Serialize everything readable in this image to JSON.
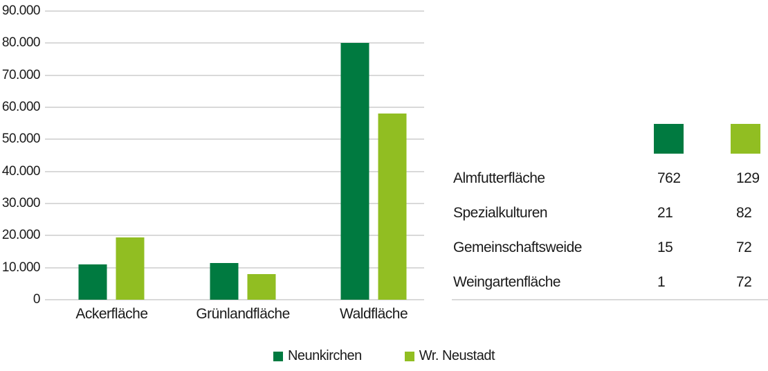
{
  "chart_data": {
    "type": "bar",
    "title": "",
    "categories": [
      "Ackerfläche",
      "Grünlandfläche",
      "Waldfläche"
    ],
    "series": [
      {
        "name": "Neunkirchen",
        "color": "#007A40",
        "values": [
          11000,
          11500,
          80000
        ]
      },
      {
        "name": "Wr. Neustadt",
        "color": "#91BE22",
        "values": [
          19500,
          8000,
          58000
        ]
      }
    ],
    "ylim": [
      0,
      90000
    ],
    "ytick_step": 10000,
    "ytick_labels": [
      "0",
      "10.000",
      "20.000",
      "30.000",
      "40.000",
      "50.000",
      "60.000",
      "70.000",
      "80.000",
      "90.000"
    ],
    "grid": "horizontal-gridlines-on",
    "legend_position": "bottom"
  },
  "legend": {
    "items": [
      {
        "label": "Neunkirchen",
        "color": "#007A40"
      },
      {
        "label": "Wr. Neustadt",
        "color": "#91BE22"
      }
    ]
  },
  "side_table": {
    "header_swatches": [
      {
        "icon": "neunkirchen-color-swatch",
        "color": "#007A40"
      },
      {
        "icon": "wr-neustadt-color-swatch",
        "color": "#91BE22"
      }
    ],
    "rows": [
      {
        "label": "Almfutterfläche",
        "values": [
          "762",
          "129"
        ]
      },
      {
        "label": "Spezialkulturen",
        "values": [
          "21",
          "82"
        ]
      },
      {
        "label": "Gemeinschaftsweide",
        "values": [
          "15",
          "72"
        ]
      },
      {
        "label": "Weingartenfläche",
        "values": [
          "1",
          "72"
        ]
      }
    ]
  },
  "colors": {
    "dark_green": "#007A40",
    "light_green": "#91BE22",
    "gridline": "#d9d9d9",
    "text": "#1a1a1a"
  }
}
